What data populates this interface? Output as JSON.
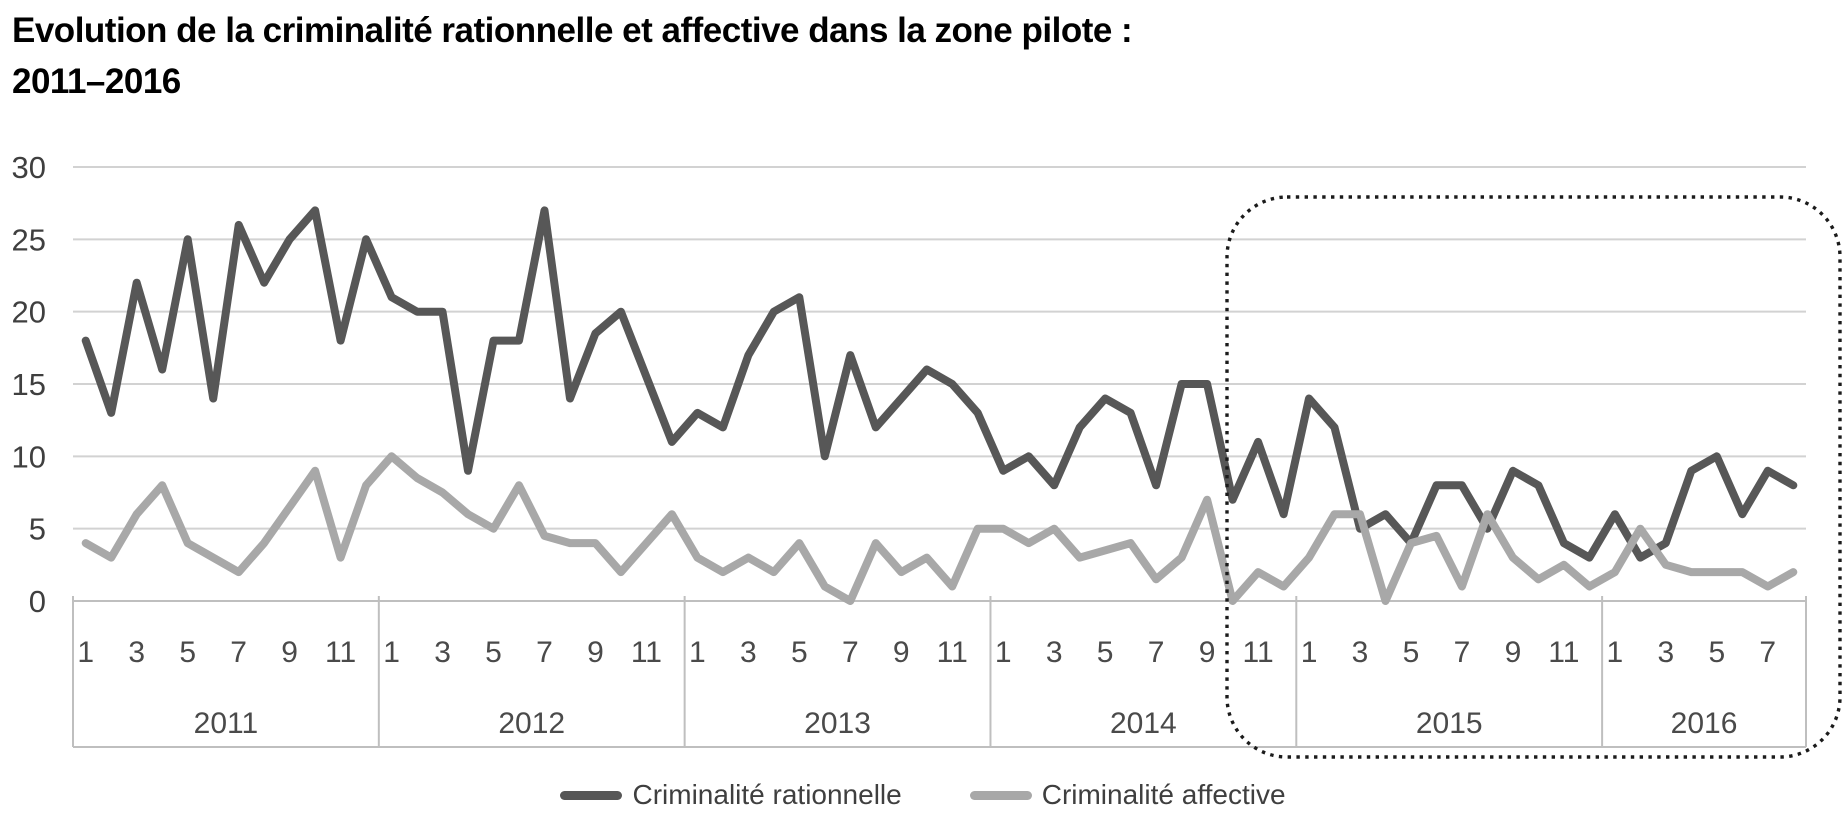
{
  "title": {
    "line1": "Evolution de la criminalité rationnelle et affective dans la zone pilote :",
    "line2": "2011–2016"
  },
  "chart_data": {
    "type": "line",
    "x_unit": "month",
    "ylim": [
      0,
      30
    ],
    "yticks": [
      0,
      5,
      10,
      15,
      20,
      25,
      30
    ],
    "grid": "horizontal",
    "years": [
      {
        "label": "2011",
        "n_months": 12,
        "month_ticks": [
          1,
          3,
          5,
          7,
          9,
          11
        ]
      },
      {
        "label": "2012",
        "n_months": 12,
        "month_ticks": [
          1,
          3,
          5,
          7,
          9,
          11
        ]
      },
      {
        "label": "2013",
        "n_months": 12,
        "month_ticks": [
          1,
          3,
          5,
          7,
          9,
          11
        ]
      },
      {
        "label": "2014",
        "n_months": 12,
        "month_ticks": [
          1,
          3,
          5,
          7,
          9,
          11
        ]
      },
      {
        "label": "2015",
        "n_months": 12,
        "month_ticks": [
          1,
          3,
          5,
          7,
          9,
          11
        ]
      },
      {
        "label": "2016",
        "n_months": 8,
        "month_ticks": [
          1,
          3,
          5,
          7
        ]
      }
    ],
    "series": [
      {
        "name": "Criminalité rationnelle",
        "color": "#575757",
        "values_by_year": {
          "2011": [
            18,
            13,
            22,
            16,
            25,
            14,
            26,
            22,
            25,
            27,
            18,
            25
          ],
          "2012": [
            21,
            20,
            20,
            9,
            18,
            18,
            27,
            14,
            18.5,
            20,
            15.5,
            11
          ],
          "2013": [
            13,
            12,
            17,
            20,
            21,
            10,
            17,
            12,
            14,
            16,
            15,
            13
          ],
          "2014": [
            9,
            10,
            8,
            12,
            14,
            13,
            8,
            15,
            15,
            7,
            11,
            6
          ],
          "2015": [
            14,
            12,
            5,
            6,
            4,
            8,
            8,
            5,
            9,
            8,
            4,
            3
          ],
          "2016": [
            6,
            3,
            4,
            9,
            10,
            6,
            9,
            8
          ]
        }
      },
      {
        "name": "Criminalité affective",
        "color": "#a8a8a8",
        "values_by_year": {
          "2011": [
            4,
            3,
            6,
            8,
            4,
            3,
            2,
            4,
            6.5,
            9,
            3,
            8
          ],
          "2012": [
            10,
            8.5,
            7.5,
            6,
            5,
            8,
            4.5,
            4,
            4,
            2,
            4,
            6
          ],
          "2013": [
            3,
            2,
            3,
            2,
            4,
            1,
            0,
            4,
            2,
            3,
            1,
            5
          ],
          "2014": [
            5,
            4,
            5,
            3,
            3.5,
            4,
            1.5,
            3,
            7,
            0,
            2,
            1
          ],
          "2015": [
            3,
            6,
            6,
            0,
            4,
            4.5,
            1,
            6,
            3,
            1.5,
            2.5,
            1
          ],
          "2016": [
            2,
            5,
            2.5,
            2,
            2,
            2,
            1,
            2
          ]
        }
      }
    ],
    "annotation_box": {
      "around_years": [
        "2015",
        "2016"
      ],
      "style": "dotted-rounded-rectangle",
      "color": "#1b1b1b"
    },
    "legend_position": "bottom-center"
  },
  "legend": {
    "items": [
      {
        "label": "Criminalité rationnelle",
        "color": "#575757"
      },
      {
        "label": "Criminalité affective",
        "color": "#a8a8a8"
      }
    ]
  },
  "colors": {
    "gridline": "#d2d2d2",
    "axis_border": "#bfbfbf",
    "tick_text": "#3f3f3f"
  }
}
